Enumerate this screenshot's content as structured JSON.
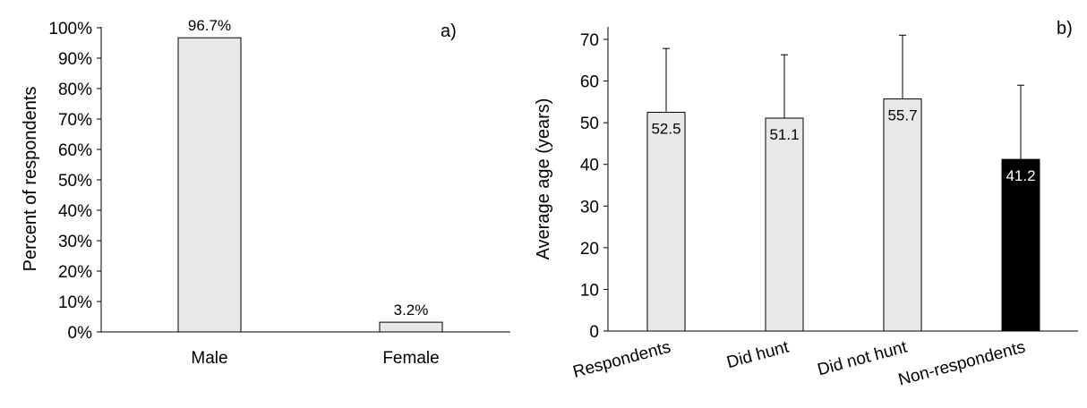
{
  "chart_data": [
    {
      "panel_label": "a)",
      "type": "bar",
      "categories": [
        "Male",
        "Female"
      ],
      "values": [
        96.7,
        3.2
      ],
      "data_labels": [
        "96.7%",
        "3.2%"
      ],
      "ylabel": "Percent of respondents",
      "ylim": [
        0,
        100
      ],
      "yticks": [
        "0%",
        "10%",
        "20%",
        "30%",
        "40%",
        "50%",
        "60%",
        "70%",
        "80%",
        "90%",
        "100%"
      ],
      "grid": false,
      "colors": {
        "bar_fill": "#e8e8e8",
        "bar_stroke": "#000000"
      }
    },
    {
      "panel_label": "b)",
      "type": "bar",
      "categories": [
        "Respondents",
        "Did hunt",
        "Did not hunt",
        "Non-respondents"
      ],
      "values": [
        52.5,
        51.1,
        55.7,
        41.2
      ],
      "error_upper": [
        67.8,
        66.3,
        71.0,
        59.0
      ],
      "data_labels": [
        "52.5",
        "51.1",
        "55.7",
        "41.2"
      ],
      "ylabel": "Average  age  (years)",
      "ylim": [
        0,
        70
      ],
      "yticks": [
        "0",
        "10",
        "20",
        "30",
        "40",
        "50",
        "60",
        "70"
      ],
      "grid": false,
      "colors": {
        "bar_fill": [
          "#e8e8e8",
          "#e8e8e8",
          "#e8e8e8",
          "#000000"
        ],
        "bar_stroke": "#000000",
        "label_on_dark": "#ffffff"
      }
    }
  ]
}
